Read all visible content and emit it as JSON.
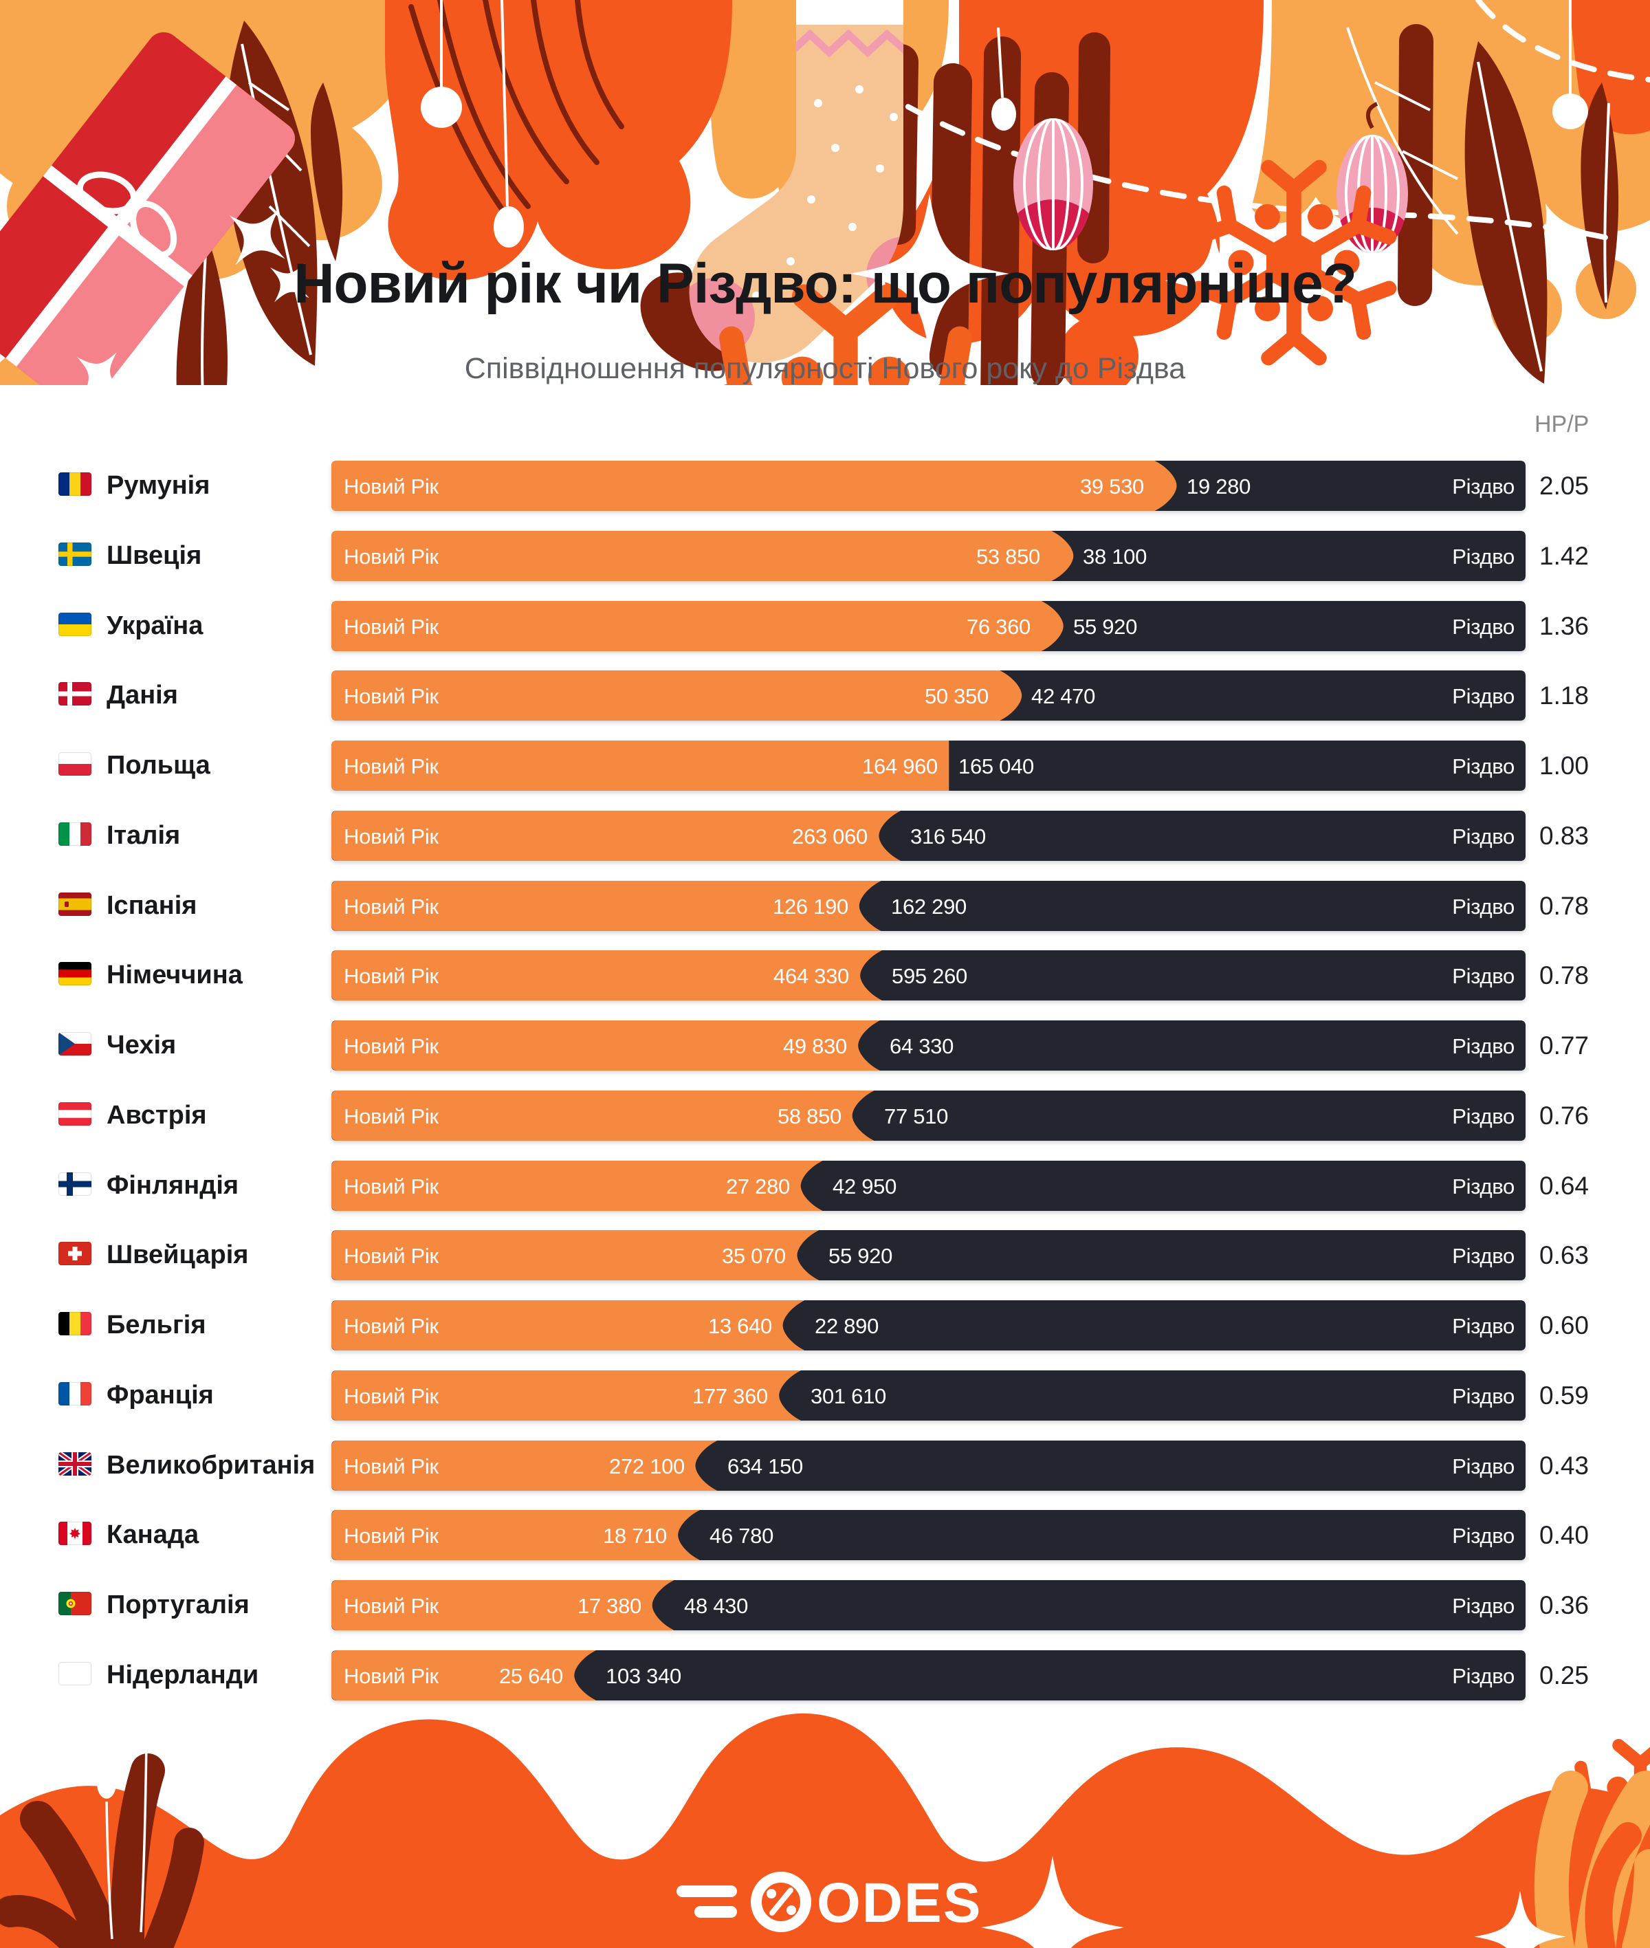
{
  "page": {
    "title": "Новий рік чи Різдво: що популярніше?",
    "subtitle": "Співвідношення популярності Нового року до Різдва",
    "ratio_header": "НР/Р"
  },
  "labels": {
    "new_year": "Новий Рік",
    "christmas": "Різдво"
  },
  "footer": {
    "logo_text": "ODES"
  },
  "colors": {
    "bar_orange": "#F5893F",
    "bar_dark": "#23262E",
    "vivid_orange": "#F4581C",
    "light_orange": "#F8A74E",
    "maroon": "#7D200C",
    "title_text": "#17191D",
    "subtitle_text": "#5E6266",
    "ratio_text": "#1D1F24",
    "header_gray": "#87898C"
  },
  "chart_data": {
    "type": "bar",
    "title": "Новий рік чи Різдво: що популярніше?",
    "subtitle": "Співвідношення популярності Нового року до Різдва",
    "legend": [
      "Новий Рік",
      "Різдво"
    ],
    "ratio_column_label": "НР/Р",
    "rows": [
      {
        "country": "Румунія",
        "flag": "ro",
        "new_year": 39530,
        "christmas": 19280,
        "new_year_label": "39 530",
        "christmas_label": "19 280",
        "ratio": "2.05"
      },
      {
        "country": "Швеція",
        "flag": "se",
        "new_year": 53850,
        "christmas": 38100,
        "new_year_label": "53 850",
        "christmas_label": "38 100",
        "ratio": "1.42"
      },
      {
        "country": "Україна",
        "flag": "ua",
        "new_year": 76360,
        "christmas": 55920,
        "new_year_label": "76 360",
        "christmas_label": "55 920",
        "ratio": "1.36"
      },
      {
        "country": "Данія",
        "flag": "dk",
        "new_year": 50350,
        "christmas": 42470,
        "new_year_label": "50 350",
        "christmas_label": "42 470",
        "ratio": "1.18"
      },
      {
        "country": "Польща",
        "flag": "pl",
        "new_year": 164960,
        "christmas": 165040,
        "new_year_label": "164 960",
        "christmas_label": "165 040",
        "ratio": "1.00"
      },
      {
        "country": "Італія",
        "flag": "it",
        "new_year": 263060,
        "christmas": 316540,
        "new_year_label": "263 060",
        "christmas_label": "316 540",
        "ratio": "0.83"
      },
      {
        "country": "Іспанія",
        "flag": "es",
        "new_year": 126190,
        "christmas": 162290,
        "new_year_label": "126 190",
        "christmas_label": "162 290",
        "ratio": "0.78"
      },
      {
        "country": "Німеччина",
        "flag": "de",
        "new_year": 464330,
        "christmas": 595260,
        "new_year_label": "464 330",
        "christmas_label": "595 260",
        "ratio": "0.78"
      },
      {
        "country": "Чехія",
        "flag": "cz",
        "new_year": 49830,
        "christmas": 64330,
        "new_year_label": "49 830",
        "christmas_label": "64 330",
        "ratio": "0.77"
      },
      {
        "country": "Австрія",
        "flag": "at",
        "new_year": 58850,
        "christmas": 77510,
        "new_year_label": "58 850",
        "christmas_label": "77 510",
        "ratio": "0.76"
      },
      {
        "country": "Фінляндія",
        "flag": "fi",
        "new_year": 27280,
        "christmas": 42950,
        "new_year_label": "27 280",
        "christmas_label": "42 950",
        "ratio": "0.64"
      },
      {
        "country": "Швейцарія",
        "flag": "ch",
        "new_year": 35070,
        "christmas": 55920,
        "new_year_label": "35 070",
        "christmas_label": "55 920",
        "ratio": "0.63"
      },
      {
        "country": "Бельгія",
        "flag": "be",
        "new_year": 13640,
        "christmas": 22890,
        "new_year_label": "13 640",
        "christmas_label": "22 890",
        "ratio": "0.60"
      },
      {
        "country": "Франція",
        "flag": "fr",
        "new_year": 177360,
        "christmas": 301610,
        "new_year_label": "177 360",
        "christmas_label": "301 610",
        "ratio": "0.59"
      },
      {
        "country": "Великобританія",
        "flag": "gb",
        "new_year": 272100,
        "christmas": 634150,
        "new_year_label": "272 100",
        "christmas_label": "634 150",
        "ratio": "0.43"
      },
      {
        "country": "Канада",
        "flag": "ca",
        "new_year": 18710,
        "christmas": 46780,
        "new_year_label": "18 710",
        "christmas_label": "46 780",
        "ratio": "0.40"
      },
      {
        "country": "Португалія",
        "flag": "pt",
        "new_year": 17380,
        "christmas": 48430,
        "new_year_label": "17 380",
        "christmas_label": "48 430",
        "ratio": "0.36"
      },
      {
        "country": "Нідерланди",
        "flag": "nl",
        "new_year": 25640,
        "christmas": 103340,
        "new_year_label": "25 640",
        "christmas_label": "103 340",
        "ratio": "0.25"
      }
    ]
  }
}
